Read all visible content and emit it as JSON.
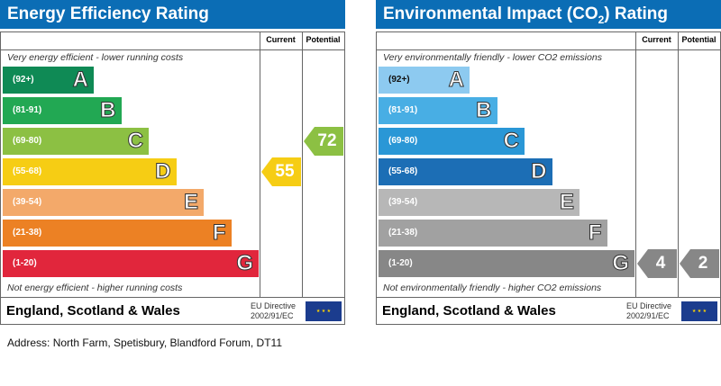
{
  "chart_data": [
    {
      "type": "table",
      "title": "Energy Efficiency Rating",
      "columns": [
        "Current",
        "Potential"
      ],
      "top_note": "Very energy efficient - lower running costs",
      "bottom_note": "Not energy efficient - higher running costs",
      "bands": [
        {
          "letter": "A",
          "range": "(92+)",
          "color": "#0f8a55"
        },
        {
          "letter": "B",
          "range": "(81-91)",
          "color": "#22a853"
        },
        {
          "letter": "C",
          "range": "(69-80)",
          "color": "#8cc043"
        },
        {
          "letter": "D",
          "range": "(55-68)",
          "color": "#f6cd14"
        },
        {
          "letter": "E",
          "range": "(39-54)",
          "color": "#f3a96a"
        },
        {
          "letter": "F",
          "range": "(21-38)",
          "color": "#ec8124"
        },
        {
          "letter": "G",
          "range": "(1-20)",
          "color": "#e1263c"
        }
      ],
      "current": {
        "value": "55",
        "band": "D",
        "color": "#f6cd14"
      },
      "potential": {
        "value": "72",
        "band": "C",
        "color": "#8cc043"
      },
      "country": "England, Scotland & Wales",
      "directive_line1": "EU Directive",
      "directive_line2": "2002/91/EC"
    },
    {
      "type": "table",
      "title": "Environmental Impact (CO2) Rating",
      "columns": [
        "Current",
        "Potential"
      ],
      "top_note": "Very environmentally friendly - lower CO2 emissions",
      "bottom_note": "Not environmentally friendly - higher CO2 emissions",
      "bands": [
        {
          "letter": "A",
          "range": "(92+)",
          "color": "#8dcaf0"
        },
        {
          "letter": "B",
          "range": "(81-91)",
          "color": "#48aee4"
        },
        {
          "letter": "C",
          "range": "(69-80)",
          "color": "#2a97d6"
        },
        {
          "letter": "D",
          "range": "(55-68)",
          "color": "#1c6eb5"
        },
        {
          "letter": "E",
          "range": "(39-54)",
          "color": "#b7b7b7"
        },
        {
          "letter": "F",
          "range": "(21-38)",
          "color": "#a1a1a1"
        },
        {
          "letter": "G",
          "range": "(1-20)",
          "color": "#878787"
        }
      ],
      "current": {
        "value": "4",
        "band": "G",
        "color": "#878787"
      },
      "potential": {
        "value": "2",
        "band": "G",
        "color": "#878787"
      },
      "country": "England, Scotland & Wales",
      "directive_line1": "EU Directive",
      "directive_line2": "2002/91/EC"
    }
  ],
  "address": "Address: North Farm, Spetisbury, Blandford Forum, DT11"
}
